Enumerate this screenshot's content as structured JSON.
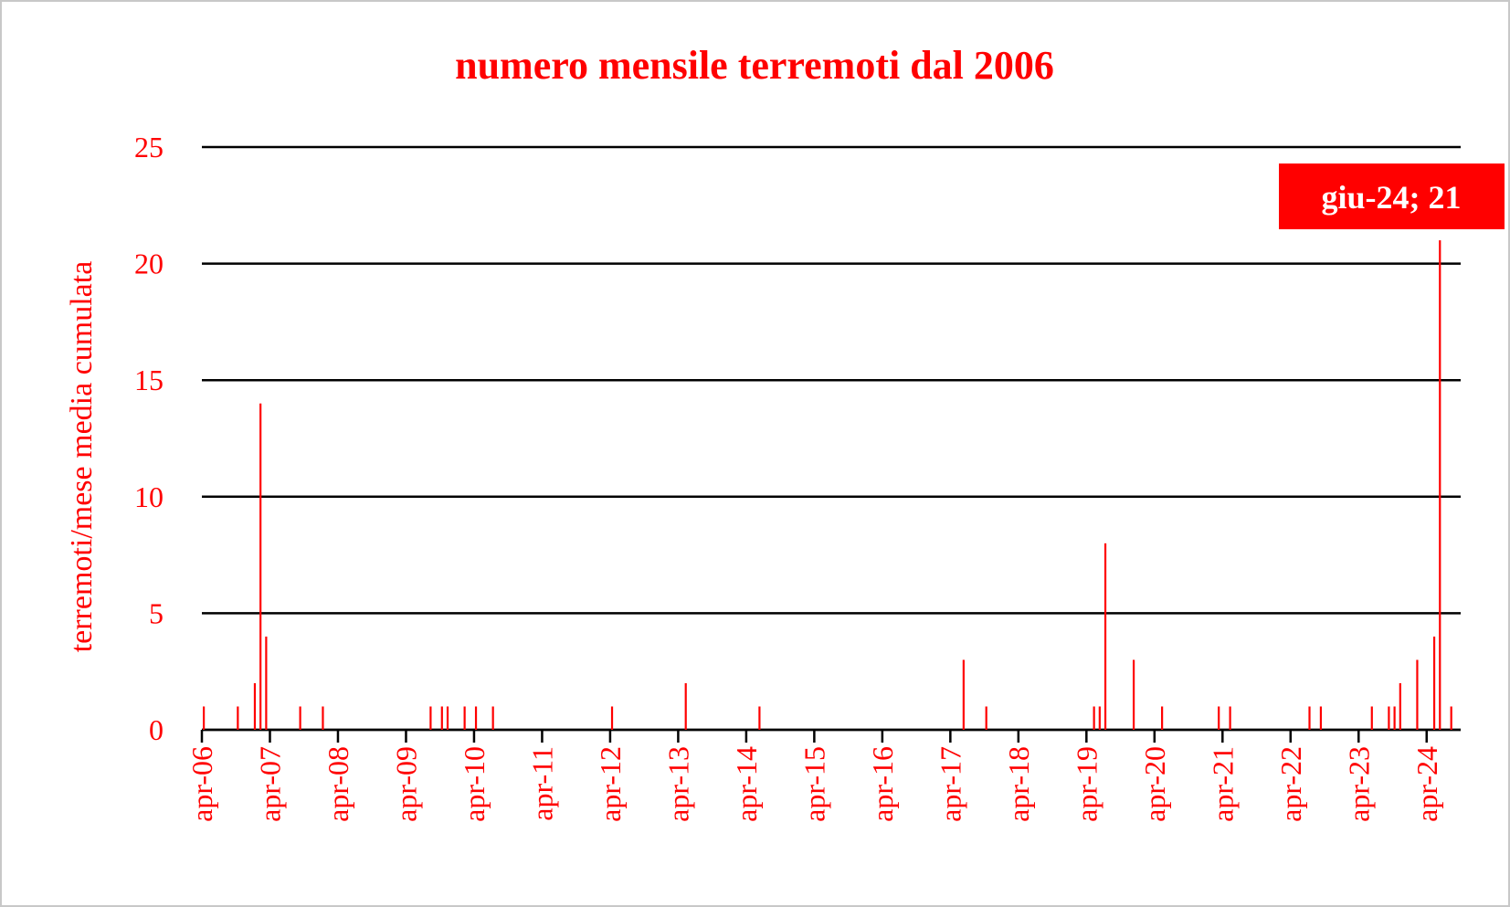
{
  "chart_data": {
    "type": "bar",
    "title": "numero mensile terremoti dal 2006",
    "y_label": "terremoti/mese media cumulata",
    "annotation": "giu-24; 21",
    "color": "#ff0000",
    "x": [
      "2006-04",
      "2006-10",
      "2007-01",
      "2007-02",
      "2007-03",
      "2007-09",
      "2008-01",
      "2009-08",
      "2009-10",
      "2009-11",
      "2010-02",
      "2010-04",
      "2010-07",
      "2012-04",
      "2013-05",
      "2014-06",
      "2017-06",
      "2017-10",
      "2019-05",
      "2019-06",
      "2019-07",
      "2019-12",
      "2020-05",
      "2021-03",
      "2021-05",
      "2022-07",
      "2022-09",
      "2023-06",
      "2023-09",
      "2023-10",
      "2023-11",
      "2024-02",
      "2024-05",
      "2024-06",
      "2024-08"
    ],
    "values": [
      1,
      1,
      2,
      14,
      4,
      1,
      1,
      1,
      1,
      1,
      1,
      1,
      1,
      1,
      2,
      1,
      3,
      1,
      1,
      1,
      8,
      3,
      1,
      1,
      1,
      1,
      1,
      1,
      1,
      1,
      2,
      3,
      4,
      21,
      1
    ],
    "xlim": [
      "2006-04",
      "2024-10"
    ],
    "xticks": [
      {
        "value": "2006-04",
        "label": "apr-06"
      },
      {
        "value": "2007-04",
        "label": "apr-07"
      },
      {
        "value": "2008-04",
        "label": "apr-08"
      },
      {
        "value": "2009-04",
        "label": "apr-09"
      },
      {
        "value": "2010-04",
        "label": "apr-10"
      },
      {
        "value": "2011-04",
        "label": "apr-11"
      },
      {
        "value": "2012-04",
        "label": "apr-12"
      },
      {
        "value": "2013-04",
        "label": "apr-13"
      },
      {
        "value": "2014-04",
        "label": "apr-14"
      },
      {
        "value": "2015-04",
        "label": "apr-15"
      },
      {
        "value": "2016-04",
        "label": "apr-16"
      },
      {
        "value": "2017-04",
        "label": "apr-17"
      },
      {
        "value": "2018-04",
        "label": "apr-18"
      },
      {
        "value": "2019-04",
        "label": "apr-19"
      },
      {
        "value": "2020-04",
        "label": "apr-20"
      },
      {
        "value": "2021-04",
        "label": "apr-21"
      },
      {
        "value": "2022-04",
        "label": "apr-22"
      },
      {
        "value": "2023-04",
        "label": "apr-23"
      },
      {
        "value": "2024-04",
        "label": "apr-24"
      }
    ],
    "ylim": [
      0,
      25
    ],
    "yticks": [
      0,
      5,
      10,
      15,
      20,
      25
    ],
    "grid": true
  }
}
